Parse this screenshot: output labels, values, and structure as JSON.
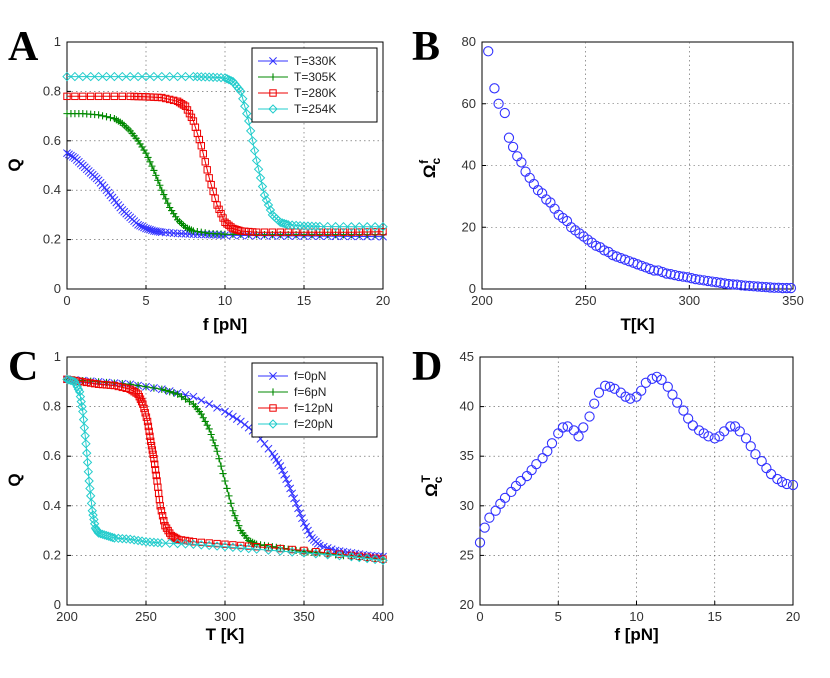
{
  "chart_data": [
    {
      "panel": "A",
      "type": "line",
      "xlabel": "f [pN]",
      "ylabel": "Q",
      "xlim": [
        0,
        20
      ],
      "ylim": [
        0,
        1
      ],
      "xticks": [
        "0",
        "5",
        "10",
        "15",
        "20"
      ],
      "yticks": [
        "0",
        "0.2",
        "0.4",
        "0.6",
        "0.8",
        "1"
      ],
      "legend_position": "top-right",
      "series": [
        {
          "name": "T=330K",
          "color": "#3333ff",
          "marker": "x",
          "x": [
            0,
            0.5,
            1,
            1.5,
            2,
            2.5,
            3,
            3.5,
            4,
            4.5,
            5,
            5.5,
            6,
            7,
            8,
            9,
            10,
            12,
            14,
            16,
            18,
            20
          ],
          "y": [
            0.55,
            0.53,
            0.5,
            0.47,
            0.44,
            0.4,
            0.36,
            0.32,
            0.29,
            0.26,
            0.245,
            0.235,
            0.23,
            0.225,
            0.222,
            0.22,
            0.218,
            0.216,
            0.215,
            0.214,
            0.213,
            0.212
          ]
        },
        {
          "name": "T=305K",
          "color": "#008800",
          "marker": "+",
          "x": [
            0,
            1,
            2,
            3,
            3.5,
            4,
            4.5,
            5,
            5.5,
            6,
            6.5,
            7,
            7.5,
            8,
            9,
            10,
            12,
            14,
            16,
            18,
            20
          ],
          "y": [
            0.71,
            0.71,
            0.705,
            0.69,
            0.67,
            0.64,
            0.6,
            0.55,
            0.48,
            0.4,
            0.33,
            0.28,
            0.25,
            0.235,
            0.225,
            0.222,
            0.22,
            0.22,
            0.22,
            0.22,
            0.22
          ]
        },
        {
          "name": "T=280K",
          "color": "#ee0000",
          "marker": "square",
          "x": [
            0,
            2,
            4,
            5,
            6,
            7,
            7.5,
            8,
            8.5,
            9,
            9.5,
            10,
            10.5,
            11,
            12,
            14,
            16,
            18,
            20
          ],
          "y": [
            0.78,
            0.78,
            0.78,
            0.778,
            0.775,
            0.76,
            0.74,
            0.68,
            0.58,
            0.45,
            0.34,
            0.27,
            0.245,
            0.235,
            0.23,
            0.23,
            0.23,
            0.23,
            0.232
          ]
        },
        {
          "name": "T=254K",
          "color": "#22cccc",
          "marker": "diamond",
          "x": [
            0,
            2,
            4,
            6,
            8,
            9,
            10,
            10.5,
            11,
            11.5,
            12,
            12.5,
            13,
            13.5,
            14,
            15,
            16,
            18,
            20
          ],
          "y": [
            0.86,
            0.86,
            0.86,
            0.86,
            0.86,
            0.858,
            0.855,
            0.84,
            0.8,
            0.68,
            0.52,
            0.38,
            0.3,
            0.27,
            0.26,
            0.255,
            0.253,
            0.252,
            0.252
          ]
        }
      ]
    },
    {
      "panel": "B",
      "type": "scatter",
      "xlabel": "T[K]",
      "ylabel": "Ω_c^f",
      "xlim": [
        200,
        350
      ],
      "ylim": [
        0,
        80
      ],
      "xticks": [
        "200",
        "250",
        "300",
        "350"
      ],
      "yticks": [
        "0",
        "20",
        "40",
        "60",
        "80"
      ],
      "series": [
        {
          "name": "Ω_c^f",
          "color": "#3333ff",
          "marker": "o",
          "x": [
            203,
            206,
            208,
            211,
            213,
            215,
            217,
            219,
            221,
            223,
            225,
            227,
            229,
            231,
            233,
            235,
            237,
            239,
            241,
            243,
            245,
            247,
            249,
            251,
            253,
            255,
            257,
            259,
            261,
            263,
            265,
            267,
            269,
            271,
            273,
            275,
            277,
            279,
            281,
            283,
            285,
            287,
            289,
            291,
            293,
            295,
            297,
            299,
            301,
            303,
            305,
            307,
            309,
            311,
            313,
            315,
            317,
            319,
            321,
            323,
            325,
            327,
            329,
            331,
            333,
            335,
            337,
            339,
            341,
            343,
            345,
            347,
            349
          ],
          "y": [
            77,
            65,
            60,
            57,
            49,
            46,
            43,
            41,
            38,
            36,
            34,
            32,
            31,
            29,
            28,
            26,
            24,
            23,
            22,
            20,
            19,
            18,
            17,
            16,
            15,
            14,
            13.5,
            12.5,
            12,
            11,
            10.5,
            10,
            9.5,
            9,
            8.5,
            8,
            7.5,
            7,
            6.5,
            6,
            6,
            5.5,
            5,
            4.8,
            4.5,
            4.2,
            4,
            3.8,
            3.5,
            3.2,
            3,
            2.8,
            2.6,
            2.4,
            2.2,
            2,
            1.8,
            1.6,
            1.5,
            1.4,
            1.2,
            1.1,
            1,
            0.9,
            0.8,
            0.7,
            0.6,
            0.5,
            0.4,
            0.4,
            0.3,
            0.3,
            0.3
          ]
        }
      ]
    },
    {
      "panel": "C",
      "type": "line",
      "xlabel": "T [K]",
      "ylabel": "Q",
      "xlim": [
        200,
        400
      ],
      "ylim": [
        0,
        1
      ],
      "xticks": [
        "200",
        "250",
        "300",
        "350",
        "400"
      ],
      "yticks": [
        "0",
        "0.2",
        "0.4",
        "0.6",
        "0.8",
        "1"
      ],
      "legend_position": "top-right",
      "series": [
        {
          "name": "f=0pN",
          "color": "#3333ff",
          "marker": "x",
          "x": [
            200,
            220,
            240,
            260,
            280,
            300,
            310,
            320,
            330,
            335,
            340,
            345,
            350,
            355,
            360,
            370,
            380,
            390,
            400
          ],
          "y": [
            0.91,
            0.9,
            0.89,
            0.87,
            0.84,
            0.78,
            0.74,
            0.69,
            0.61,
            0.56,
            0.49,
            0.41,
            0.33,
            0.27,
            0.24,
            0.22,
            0.21,
            0.2,
            0.195
          ]
        },
        {
          "name": "f=6pN",
          "color": "#008800",
          "marker": "+",
          "x": [
            200,
            220,
            240,
            260,
            270,
            280,
            285,
            290,
            295,
            300,
            305,
            310,
            315,
            320,
            330,
            340,
            350,
            360,
            380,
            400
          ],
          "y": [
            0.91,
            0.9,
            0.89,
            0.87,
            0.85,
            0.81,
            0.77,
            0.71,
            0.62,
            0.5,
            0.38,
            0.3,
            0.26,
            0.245,
            0.235,
            0.225,
            0.215,
            0.21,
            0.195,
            0.185
          ]
        },
        {
          "name": "f=12pN",
          "color": "#ee0000",
          "marker": "square",
          "x": [
            200,
            210,
            220,
            230,
            240,
            245,
            248,
            251,
            253,
            255,
            257,
            259,
            262,
            266,
            270,
            280,
            300,
            320,
            350,
            380,
            400
          ],
          "y": [
            0.91,
            0.9,
            0.89,
            0.885,
            0.87,
            0.85,
            0.81,
            0.74,
            0.66,
            0.59,
            0.5,
            0.4,
            0.32,
            0.28,
            0.265,
            0.255,
            0.245,
            0.235,
            0.22,
            0.2,
            0.185
          ]
        },
        {
          "name": "f=20pN",
          "color": "#22cccc",
          "marker": "diamond",
          "x": [
            200,
            205,
            208,
            210,
            212,
            214,
            216,
            218,
            220,
            225,
            230,
            240,
            250,
            260,
            280,
            300,
            320,
            350,
            380,
            400
          ],
          "y": [
            0.91,
            0.9,
            0.86,
            0.78,
            0.65,
            0.5,
            0.38,
            0.31,
            0.29,
            0.28,
            0.27,
            0.265,
            0.255,
            0.25,
            0.245,
            0.235,
            0.225,
            0.21,
            0.195,
            0.18
          ]
        }
      ]
    },
    {
      "panel": "D",
      "type": "scatter",
      "xlabel": "f [pN]",
      "ylabel": "Ω_c^T",
      "xlim": [
        0,
        20
      ],
      "ylim": [
        20,
        45
      ],
      "xticks": [
        "0",
        "5",
        "10",
        "15",
        "20"
      ],
      "yticks": [
        "20",
        "25",
        "30",
        "35",
        "40",
        "45"
      ],
      "series": [
        {
          "name": "Ω_c^T",
          "color": "#3333ff",
          "marker": "o",
          "x": [
            0,
            0.3,
            0.6,
            1,
            1.3,
            1.6,
            2,
            2.3,
            2.6,
            3,
            3.3,
            3.6,
            4,
            4.3,
            4.6,
            5,
            5.3,
            5.6,
            6,
            6.3,
            6.6,
            7,
            7.3,
            7.6,
            8,
            8.3,
            8.6,
            9,
            9.3,
            9.6,
            10,
            10.3,
            10.6,
            11,
            11.3,
            11.6,
            12,
            12.3,
            12.6,
            13,
            13.3,
            13.6,
            14,
            14.3,
            14.6,
            15,
            15.3,
            15.6,
            16,
            16.3,
            16.6,
            17,
            17.3,
            17.6,
            18,
            18.3,
            18.6,
            19,
            19.3,
            19.6,
            20
          ],
          "y": [
            26.3,
            27.8,
            28.8,
            29.5,
            30.2,
            30.8,
            31.4,
            32.0,
            32.5,
            33.0,
            33.6,
            34.2,
            34.8,
            35.5,
            36.3,
            37.3,
            37.9,
            38.0,
            37.6,
            37.0,
            37.9,
            39.0,
            40.3,
            41.4,
            42.1,
            42.0,
            41.8,
            41.4,
            41.0,
            40.8,
            41.0,
            41.6,
            42.4,
            42.8,
            43.0,
            42.7,
            42.0,
            41.2,
            40.4,
            39.6,
            38.8,
            38.1,
            37.6,
            37.3,
            37.0,
            36.8,
            37.0,
            37.5,
            38.0,
            38.0,
            37.5,
            36.8,
            36.0,
            35.2,
            34.5,
            33.8,
            33.2,
            32.7,
            32.4,
            32.2,
            32.1
          ]
        }
      ]
    }
  ]
}
